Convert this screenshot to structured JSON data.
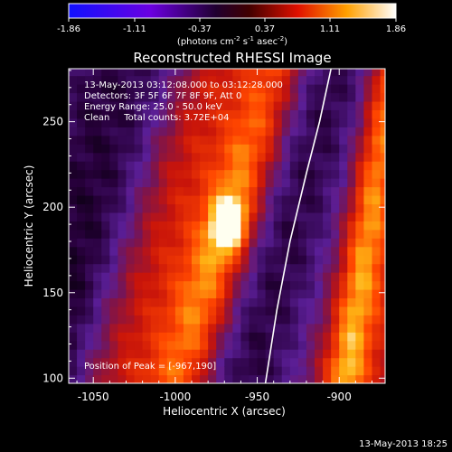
{
  "chart_data": {
    "type": "heatmap",
    "title": "Reconstructed RHESSI Image",
    "colorbar": {
      "min": -1.86,
      "max": 1.86,
      "ticks": [
        "-1.86",
        "-1.11",
        "-0.37",
        "0.37",
        "1.11",
        "1.86"
      ],
      "label_parts": [
        "(photons cm",
        "-2",
        " s",
        "-1",
        " asec",
        "-2",
        ")"
      ]
    },
    "xlabel": "Heliocentric X (arcsec)",
    "ylabel": "Heliocentric Y (arcsec)",
    "xlim": [
      -1065,
      -872
    ],
    "ylim": [
      97,
      281
    ],
    "xticks": [
      -1050,
      -1000,
      -950,
      -900
    ],
    "yticks": [
      100,
      150,
      200,
      250
    ],
    "info_lines": [
      "13-May-2013 03:12:08.000 to 03:12:28.000",
      "Detectors: 3F 5F 6F 7F 8F 9F, Att 0",
      "Energy Range: 25.0 - 50.0 keV",
      "Clean     Total counts: 3.72E+04"
    ],
    "peak_label": "Position of Peak = [-967,190]",
    "peak": [
      -967,
      190
    ],
    "limb": [
      [
        -945,
        97
      ],
      [
        -938,
        140
      ],
      [
        -930,
        180
      ],
      [
        -920,
        220
      ],
      [
        -912,
        250
      ],
      [
        -905,
        281
      ]
    ],
    "timestamp": "13-May-2013 18:25"
  }
}
